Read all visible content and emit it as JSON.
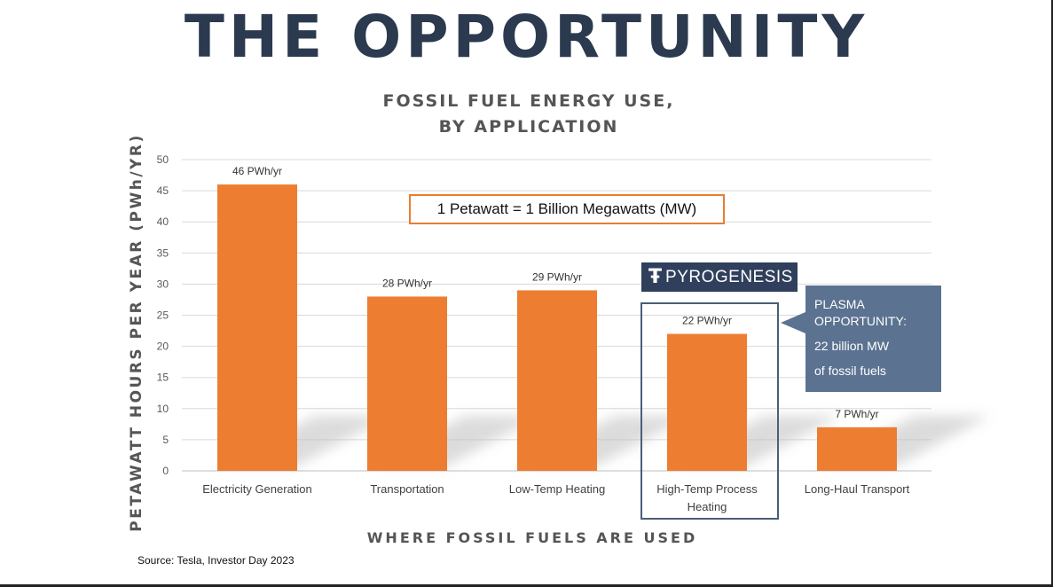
{
  "slide": {
    "title": "THE OPPORTUNITY",
    "source": "Source: Tesla, Investor Day 2023"
  },
  "callout": {
    "text": "1 Petawatt = 1 Billion Megawatts (MW)",
    "color": "#e87d2f"
  },
  "logo": {
    "mark": "Ŧ",
    "text": "PYROGENESIS",
    "icon": "pyrogenesis-logo-icon"
  },
  "plasma_note": {
    "line1": "PLASMA",
    "line2": "OPPORTUNITY:",
    "line3": "22 billion MW",
    "line4": "of fossil fuels"
  },
  "colors": {
    "bar": "#ed7d31",
    "title": "#2b3a4f",
    "highlight": "#4a5f78",
    "plasma": "#5b7290"
  },
  "chart_data": {
    "type": "bar",
    "title_line1": "FOSSIL FUEL ENERGY USE,",
    "title_line2": "BY APPLICATION",
    "xlabel": "WHERE FOSSIL FUELS ARE USED",
    "ylabel": "PETAWATT HOURS PER YEAR (PWh/YR)",
    "categories": [
      [
        "Electricity Generation"
      ],
      [
        "Transportation"
      ],
      [
        "Low-Temp Heating"
      ],
      [
        "High-Temp Process",
        "Heating"
      ],
      [
        "Long-Haul Transport"
      ]
    ],
    "values": [
      46,
      28,
      29,
      22,
      7
    ],
    "data_labels": [
      "46 PWh/yr",
      "28 PWh/yr",
      "29 PWh/yr",
      "22 PWh/yr",
      "7 PWh/yr"
    ],
    "ylim": [
      0,
      50
    ],
    "yticks": [
      0,
      5,
      10,
      15,
      20,
      25,
      30,
      35,
      40,
      45,
      50
    ],
    "grid": true,
    "highlighted_category": "High-Temp Process Heating"
  }
}
